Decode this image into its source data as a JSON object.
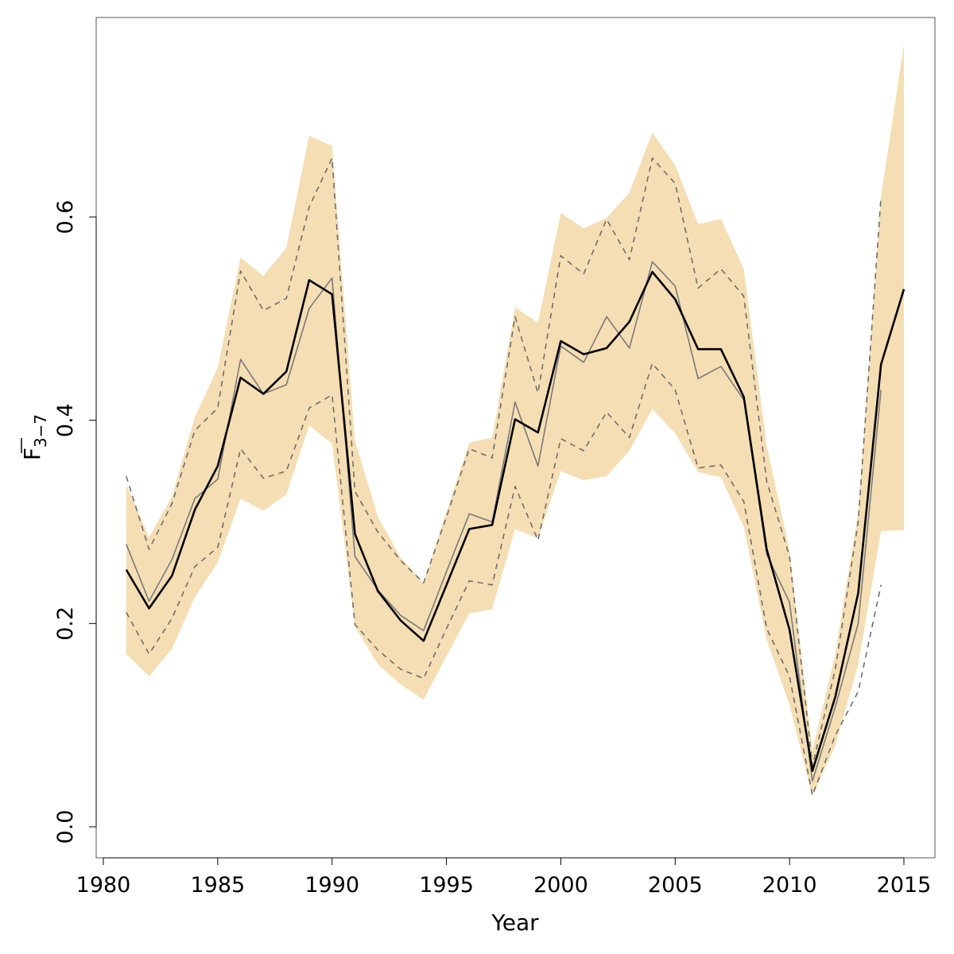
{
  "chart_data": {
    "type": "line",
    "title": "",
    "xlabel": "Year",
    "ylabel": {
      "main": "F",
      "subscript": "3−7"
    },
    "xlim": [
      1980,
      2015
    ],
    "ylim": [
      0.0,
      0.8
    ],
    "x_ticks": [
      1980,
      1985,
      1990,
      1995,
      2000,
      2005,
      2010,
      2015
    ],
    "y_ticks": [
      0.0,
      0.2,
      0.4,
      0.6
    ],
    "y_tick_labels": [
      "0.0",
      "0.2",
      "0.4",
      "0.6"
    ],
    "grid": false,
    "legend": "none",
    "colors": {
      "band": "#f5deb3",
      "estimate": "#000000",
      "retro": "#7a7a7a",
      "retro_ci": "#6e6e6e",
      "frame": "#555555"
    },
    "band": {
      "x": [
        1981,
        1982,
        1983,
        1984,
        1985,
        1986,
        1987,
        1988,
        1989,
        1990,
        1991,
        1992,
        1993,
        1994,
        1995,
        1996,
        1997,
        1998,
        1999,
        2000,
        2001,
        2002,
        2003,
        2004,
        2005,
        2006,
        2007,
        2008,
        2009,
        2010,
        2011,
        2012,
        2013,
        2014,
        2015
      ],
      "upper": [
        0.337,
        0.285,
        0.325,
        0.403,
        0.452,
        0.56,
        0.542,
        0.57,
        0.68,
        0.67,
        0.38,
        0.305,
        0.265,
        0.24,
        0.31,
        0.378,
        0.383,
        0.511,
        0.496,
        0.604,
        0.589,
        0.599,
        0.624,
        0.683,
        0.651,
        0.593,
        0.598,
        0.549,
        0.375,
        0.272,
        0.075,
        0.17,
        0.31,
        0.62,
        0.77
      ],
      "lower": [
        0.17,
        0.148,
        0.175,
        0.226,
        0.26,
        0.323,
        0.311,
        0.327,
        0.395,
        0.377,
        0.197,
        0.16,
        0.14,
        0.125,
        0.168,
        0.21,
        0.214,
        0.293,
        0.284,
        0.35,
        0.341,
        0.345,
        0.37,
        0.411,
        0.387,
        0.349,
        0.344,
        0.295,
        0.184,
        0.12,
        0.03,
        0.08,
        0.16,
        0.291,
        0.292
      ]
    },
    "series": [
      {
        "x": [
          1981,
          1982,
          1983,
          1984,
          1985,
          1986,
          1987,
          1988,
          1989,
          1990,
          1991,
          1992,
          1993,
          1994,
          1995,
          1996,
          1997,
          1998,
          1999,
          2000,
          2001,
          2002,
          2003,
          2004,
          2005,
          2006,
          2007,
          2008,
          2009,
          2010,
          2011,
          2012,
          2013,
          2014,
          2015
        ],
        "values": [
          0.253,
          0.215,
          0.247,
          0.312,
          0.355,
          0.442,
          0.426,
          0.448,
          0.538,
          0.524,
          0.288,
          0.232,
          0.203,
          0.183,
          0.238,
          0.293,
          0.297,
          0.401,
          0.388,
          0.478,
          0.465,
          0.471,
          0.497,
          0.546,
          0.519,
          0.47,
          0.47,
          0.423,
          0.273,
          0.194,
          0.055,
          0.128,
          0.23,
          0.455,
          0.529
        ],
        "style": "solid-bold"
      },
      {
        "x": [
          1981,
          1982,
          1983,
          1984,
          1985,
          1986,
          1987,
          1988,
          1989,
          1990,
          1991,
          1992,
          1993,
          1994,
          1995,
          1996,
          1997,
          1998,
          1999,
          2000,
          2001,
          2002,
          2003,
          2004,
          2005,
          2006,
          2007,
          2008,
          2009,
          2010,
          2011,
          2012,
          2013,
          2014
        ],
        "values": [
          0.278,
          0.222,
          0.263,
          0.323,
          0.342,
          0.46,
          0.426,
          0.435,
          0.51,
          0.54,
          0.266,
          0.233,
          0.208,
          0.193,
          0.251,
          0.308,
          0.3,
          0.418,
          0.355,
          0.473,
          0.457,
          0.502,
          0.471,
          0.556,
          0.532,
          0.441,
          0.453,
          0.42,
          0.268,
          0.221,
          0.045,
          0.118,
          0.2,
          0.43
        ],
        "style": "solid-grey"
      },
      {
        "x": [
          1981,
          1982,
          1983,
          1984,
          1985,
          1986,
          1987,
          1988,
          1989,
          1990,
          1991,
          1992,
          1993,
          1994,
          1995,
          1996,
          1997,
          1998,
          1999,
          2000,
          2001,
          2002,
          2003,
          2004,
          2005,
          2006,
          2007,
          2008,
          2009,
          2010,
          2011,
          2012,
          2013,
          2014
        ],
        "values": [
          0.345,
          0.273,
          0.318,
          0.39,
          0.412,
          0.547,
          0.508,
          0.52,
          0.61,
          0.658,
          0.33,
          0.29,
          0.262,
          0.24,
          0.305,
          0.372,
          0.363,
          0.502,
          0.427,
          0.562,
          0.544,
          0.598,
          0.558,
          0.658,
          0.633,
          0.53,
          0.549,
          0.522,
          0.34,
          0.266,
          0.06,
          0.155,
          0.3,
          0.62
        ],
        "style": "dashed-upper"
      },
      {
        "x": [
          1981,
          1982,
          1983,
          1984,
          1985,
          1986,
          1987,
          1988,
          1989,
          1990,
          1991,
          1992,
          1993,
          1994,
          1995,
          1996,
          1997,
          1998,
          1999,
          2000,
          2001,
          2002,
          2003,
          2004,
          2005,
          2006,
          2007,
          2008,
          2009,
          2010,
          2011,
          2012,
          2013,
          2014
        ],
        "values": [
          0.211,
          0.17,
          0.205,
          0.256,
          0.275,
          0.372,
          0.343,
          0.35,
          0.412,
          0.425,
          0.199,
          0.174,
          0.155,
          0.146,
          0.195,
          0.242,
          0.238,
          0.335,
          0.282,
          0.382,
          0.37,
          0.408,
          0.383,
          0.456,
          0.43,
          0.353,
          0.356,
          0.32,
          0.195,
          0.148,
          0.031,
          0.09,
          0.133,
          0.238
        ],
        "style": "dashed-lower"
      }
    ]
  }
}
